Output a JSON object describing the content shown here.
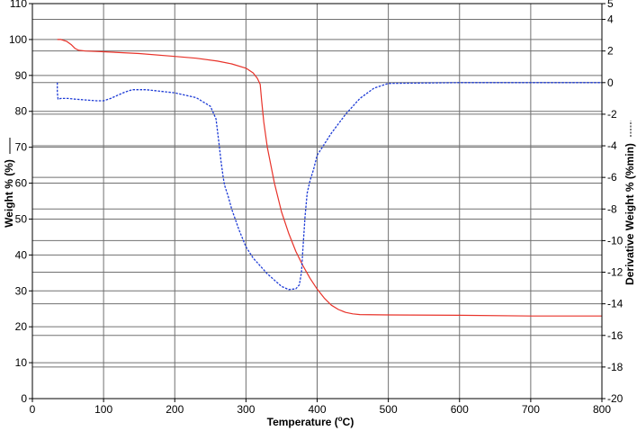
{
  "chart_data": {
    "type": "line",
    "title": "",
    "xlabel_main": "Temperature (",
    "xlabel_sup": "o",
    "xlabel_end": "C)",
    "ylabel_left": "Weight % (%)",
    "ylabel_right": "Derivative Weight % (%min)",
    "xlim": [
      0,
      800
    ],
    "ylim_left": [
      0,
      110
    ],
    "ylim_right": [
      -20,
      5
    ],
    "x_ticks": [
      "0",
      "100",
      "200",
      "300",
      "400",
      "500",
      "600",
      "700",
      "800"
    ],
    "y_left_ticks": [
      "0",
      "10",
      "20",
      "30",
      "40",
      "50",
      "60",
      "70",
      "80",
      "90",
      "100",
      "110"
    ],
    "y_right_ticks": [
      "-20",
      "-18",
      "-16",
      "-14",
      "-12",
      "-10",
      "-8",
      "-6",
      "-4",
      "-2",
      "0",
      "2",
      "4",
      "5"
    ],
    "grid": true,
    "series": [
      {
        "axis": "left",
        "style": "solid",
        "color": "#e8332a",
        "x": [
          35,
          40,
          48,
          55,
          60,
          65,
          75,
          100,
          150,
          200,
          230,
          260,
          280,
          300,
          310,
          316,
          320,
          322,
          325,
          330,
          340,
          350,
          360,
          370,
          380,
          390,
          400,
          410,
          420,
          430,
          440,
          450,
          460,
          500,
          600,
          700,
          800
        ],
        "y": [
          100,
          100,
          99.5,
          98.5,
          97.5,
          97,
          96.8,
          96.6,
          96.1,
          95.3,
          94.8,
          94,
          93.2,
          92,
          90.7,
          89.2,
          87.5,
          83,
          77,
          70,
          60,
          52,
          46,
          41,
          37,
          33.5,
          30.5,
          28,
          26,
          24.8,
          24,
          23.6,
          23.4,
          23.3,
          23.2,
          23,
          23
        ]
      },
      {
        "axis": "right",
        "style": "dashed",
        "color": "#1d3bd6",
        "x": [
          35,
          35,
          36,
          40,
          50,
          60,
          75,
          90,
          100,
          110,
          120,
          130,
          140,
          160,
          200,
          230,
          250,
          258,
          262,
          265,
          268,
          270,
          275,
          280,
          290,
          300,
          310,
          320,
          330,
          340,
          350,
          360,
          370,
          375,
          378,
          380,
          383,
          386,
          390,
          395,
          400,
          420,
          440,
          460,
          480,
          500,
          600,
          700,
          800
        ],
        "y": [
          0,
          -0.6,
          -1.05,
          -1.0,
          -1.0,
          -1.05,
          -1.1,
          -1.15,
          -1.15,
          -1.0,
          -0.8,
          -0.6,
          -0.45,
          -0.45,
          -0.65,
          -0.95,
          -1.5,
          -2.3,
          -3.8,
          -5,
          -6,
          -6.5,
          -7.2,
          -8,
          -9.3,
          -10.4,
          -11.1,
          -11.6,
          -12.1,
          -12.5,
          -12.9,
          -13.1,
          -13.05,
          -12.8,
          -12,
          -10.5,
          -8.5,
          -7,
          -6.2,
          -5.5,
          -4.6,
          -3.2,
          -2.0,
          -1.0,
          -0.35,
          -0.05,
          0,
          0,
          0
        ]
      }
    ]
  }
}
